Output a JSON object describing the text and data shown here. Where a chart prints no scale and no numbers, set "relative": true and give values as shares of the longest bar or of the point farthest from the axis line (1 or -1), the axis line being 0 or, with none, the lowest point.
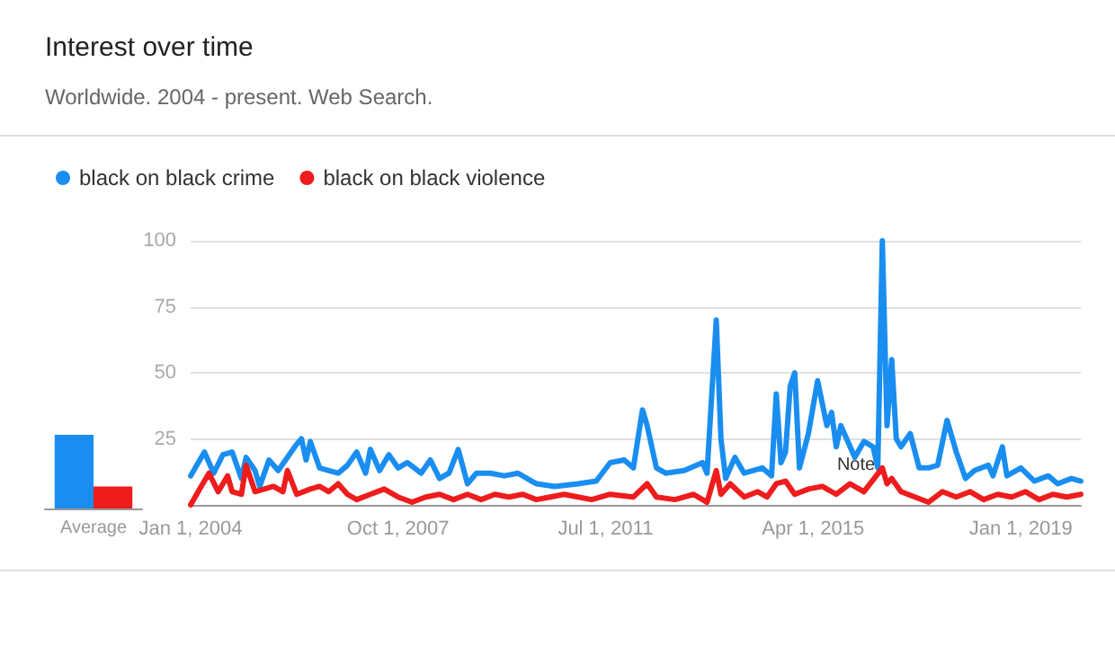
{
  "chart_data": [
    {
      "type": "line",
      "title": "Interest over time",
      "subtitle": "Worldwide. 2004 - present. Web Search.",
      "xlim": [
        "2004-01",
        "2020-02"
      ],
      "xticks": [
        {
          "value": "2004-01-01",
          "label": "Jan 1, 2004"
        },
        {
          "value": "2007-10-01",
          "label": "Oct 1, 2007"
        },
        {
          "value": "2011-07-01",
          "label": "Jul 1, 2011"
        },
        {
          "value": "2015-04-01",
          "label": "Apr 1, 2015"
        },
        {
          "value": "2019-01-01",
          "label": "Jan 1, 2019"
        }
      ],
      "ylim": [
        0,
        100
      ],
      "yticks": [
        25,
        50,
        75,
        100
      ],
      "grid": "y",
      "legend": "top left",
      "marker": "none",
      "line_style": "solid",
      "annotations": [
        "Note"
      ],
      "series": [
        {
          "name": "black on black crime",
          "color": "#1a8ef0",
          "x": [
            "2004-01",
            "2004-04",
            "2004-06",
            "2004-08",
            "2004-10",
            "2004-12",
            "2005-01",
            "2005-03",
            "2005-04",
            "2005-06",
            "2005-08",
            "2005-10",
            "2005-12",
            "2006-01",
            "2006-02",
            "2006-03",
            "2006-05",
            "2006-07",
            "2006-09",
            "2006-11",
            "2007-01",
            "2007-03",
            "2007-04",
            "2007-06",
            "2007-08",
            "2007-10",
            "2007-12",
            "2008-03",
            "2008-05",
            "2008-07",
            "2008-09",
            "2008-11",
            "2009-01",
            "2009-03",
            "2009-06",
            "2009-09",
            "2009-12",
            "2010-03",
            "2010-04",
            "2010-08",
            "2011-01",
            "2011-05",
            "2011-08",
            "2011-11",
            "2012-01",
            "2012-03",
            "2012-04",
            "2012-06",
            "2012-08",
            "2012-12",
            "2013-04",
            "2013-05",
            "2013-07",
            "2013-08",
            "2013-09",
            "2013-11",
            "2014-01",
            "2014-05",
            "2014-07",
            "2014-08",
            "2014-09",
            "2014-10",
            "2014-11",
            "2014-12",
            "2015-01",
            "2015-03",
            "2015-05",
            "2015-07",
            "2015-08",
            "2015-09",
            "2015-10",
            "2016-01",
            "2016-03",
            "2016-05",
            "2016-06",
            "2016-07",
            "2016-08",
            "2016-09",
            "2016-10",
            "2016-11",
            "2017-01",
            "2017-03",
            "2017-05",
            "2017-07",
            "2017-09",
            "2017-11",
            "2018-01",
            "2018-03",
            "2018-06",
            "2018-07",
            "2018-09",
            "2018-10",
            "2019-01",
            "2019-04",
            "2019-07",
            "2019-09",
            "2019-12",
            "2020-02"
          ],
          "values": [
            11,
            20,
            12,
            19,
            20,
            10,
            18,
            13,
            7,
            17,
            13,
            18,
            23,
            25,
            17,
            24,
            14,
            13,
            12,
            15,
            20,
            12,
            21,
            13,
            19,
            14,
            16,
            12,
            17,
            10,
            12,
            21,
            8,
            12,
            12,
            11,
            12,
            9,
            8,
            7,
            8,
            9,
            16,
            17,
            14,
            36,
            30,
            14,
            12,
            13,
            16,
            12,
            70,
            25,
            10,
            18,
            12,
            14,
            11,
            42,
            16,
            20,
            45,
            50,
            14,
            27,
            47,
            30,
            35,
            22,
            30,
            18,
            24,
            22,
            14,
            100,
            30,
            55,
            25,
            22,
            27,
            14,
            14,
            15,
            32,
            20,
            10,
            13,
            15,
            11,
            22,
            11,
            14,
            9,
            11,
            8,
            10,
            9
          ]
        },
        {
          "name": "black on black violence",
          "color": "#ee1c1c",
          "x": [
            "2004-01",
            "2004-03",
            "2004-05",
            "2004-07",
            "2004-09",
            "2004-10",
            "2004-12",
            "2005-01",
            "2005-03",
            "2005-05",
            "2005-07",
            "2005-09",
            "2005-10",
            "2005-12",
            "2006-03",
            "2006-05",
            "2006-07",
            "2006-09",
            "2006-11",
            "2007-01",
            "2007-04",
            "2007-07",
            "2007-10",
            "2008-01",
            "2008-04",
            "2008-07",
            "2008-10",
            "2009-01",
            "2009-04",
            "2009-07",
            "2009-10",
            "2010-01",
            "2010-04",
            "2010-07",
            "2010-10",
            "2011-01",
            "2011-04",
            "2011-08",
            "2012-01",
            "2012-04",
            "2012-06",
            "2012-10",
            "2013-02",
            "2013-05",
            "2013-07",
            "2013-08",
            "2013-10",
            "2014-01",
            "2014-04",
            "2014-06",
            "2014-08",
            "2014-10",
            "2014-12",
            "2015-03",
            "2015-06",
            "2015-09",
            "2015-12",
            "2016-03",
            "2016-07",
            "2016-08",
            "2016-09",
            "2016-11",
            "2017-02",
            "2017-05",
            "2017-08",
            "2017-11",
            "2018-02",
            "2018-05",
            "2018-08",
            "2018-11",
            "2019-02",
            "2019-05",
            "2019-08",
            "2019-11",
            "2020-02"
          ],
          "values": [
            0,
            6,
            12,
            5,
            11,
            5,
            4,
            15,
            5,
            6,
            7,
            5,
            13,
            4,
            6,
            7,
            5,
            8,
            4,
            2,
            4,
            6,
            3,
            1,
            3,
            4,
            2,
            4,
            2,
            4,
            3,
            4,
            2,
            3,
            4,
            3,
            2,
            4,
            3,
            8,
            3,
            2,
            4,
            1,
            13,
            4,
            8,
            3,
            5,
            3,
            8,
            9,
            4,
            6,
            7,
            4,
            8,
            5,
            14,
            8,
            10,
            5,
            3,
            1,
            5,
            3,
            5,
            2,
            4,
            3,
            5,
            2,
            4,
            3,
            4
          ]
        }
      ]
    },
    {
      "type": "bar",
      "relative": true,
      "categories": [
        "Average"
      ],
      "series": [
        {
          "color": "#1a8ef0",
          "values": [
            1
          ]
        },
        {
          "color": "#ee1c1c",
          "values": [
            0.3
          ]
        }
      ]
    }
  ]
}
